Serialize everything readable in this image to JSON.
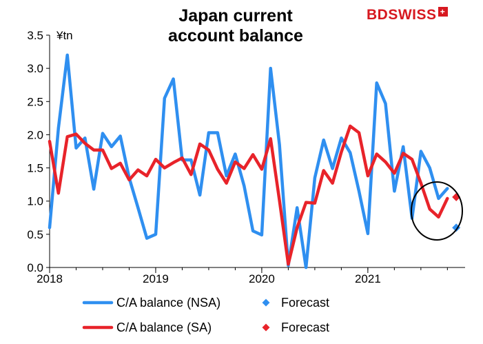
{
  "brand": {
    "bd": "BD",
    "swiss": "SWISS",
    "mark": "+"
  },
  "colors": {
    "nsa": "#2f8ff0",
    "sa": "#e8232a",
    "axis": "#000000",
    "annotation_circle": "#000000"
  },
  "chart_data": {
    "type": "line",
    "title": "Japan current\naccount balance",
    "ylabel": "¥tn",
    "ylim": [
      0,
      3.5
    ],
    "xlim": [
      "2018-01",
      "2021-12"
    ],
    "x_tick_labels": [
      "2018",
      "2019",
      "2020",
      "2021"
    ],
    "y_tick_labels": [
      "0.0",
      "0.5",
      "1.0",
      "1.5",
      "2.0",
      "2.5",
      "3.0",
      "3.5"
    ],
    "x": [
      "2018-01",
      "2018-02",
      "2018-03",
      "2018-04",
      "2018-05",
      "2018-06",
      "2018-07",
      "2018-08",
      "2018-09",
      "2018-10",
      "2018-11",
      "2018-12",
      "2019-01",
      "2019-02",
      "2019-03",
      "2019-04",
      "2019-05",
      "2019-06",
      "2019-07",
      "2019-08",
      "2019-09",
      "2019-10",
      "2019-11",
      "2019-12",
      "2020-01",
      "2020-02",
      "2020-03",
      "2020-04",
      "2020-05",
      "2020-06",
      "2020-07",
      "2020-08",
      "2020-09",
      "2020-10",
      "2020-11",
      "2020-12",
      "2021-01",
      "2021-02",
      "2021-03",
      "2021-04",
      "2021-05",
      "2021-06",
      "2021-07",
      "2021-08",
      "2021-09",
      "2021-10"
    ],
    "series": [
      {
        "name": "C/A balance (NSA)",
        "values": [
          0.6,
          2.1,
          3.2,
          1.8,
          1.95,
          1.18,
          2.02,
          1.82,
          1.98,
          1.35,
          0.9,
          0.44,
          0.5,
          2.55,
          2.84,
          1.62,
          1.62,
          1.09,
          2.03,
          2.03,
          1.38,
          1.71,
          1.23,
          0.55,
          0.49,
          3.0,
          1.85,
          0.03,
          0.9,
          0.0,
          1.35,
          1.92,
          1.49,
          1.95,
          1.73,
          1.15,
          0.51,
          2.78,
          2.47,
          1.15,
          1.82,
          0.74,
          1.75,
          1.5,
          1.04,
          1.19
        ]
      },
      {
        "name": "C/A balance (SA)",
        "values": [
          1.9,
          1.12,
          1.97,
          2.01,
          1.87,
          1.77,
          1.77,
          1.49,
          1.57,
          1.32,
          1.47,
          1.38,
          1.63,
          1.5,
          1.58,
          1.65,
          1.4,
          1.86,
          1.77,
          1.48,
          1.27,
          1.59,
          1.49,
          1.7,
          1.48,
          1.94,
          1.01,
          0.05,
          0.6,
          0.98,
          0.97,
          1.46,
          1.27,
          1.74,
          2.13,
          2.03,
          1.38,
          1.71,
          1.59,
          1.42,
          1.72,
          1.63,
          1.27,
          0.88,
          0.76,
          1.04
        ]
      }
    ],
    "forecast": [
      {
        "name": "Forecast",
        "x": "2021-11",
        "value": 0.6,
        "series": "C/A balance (NSA)"
      },
      {
        "name": "Forecast",
        "x": "2021-11",
        "value": 1.06,
        "series": "C/A balance (SA)"
      }
    ],
    "legend": [
      {
        "label": "C/A balance (NSA)",
        "kind": "line",
        "color_key": "nsa"
      },
      {
        "label": "Forecast",
        "kind": "marker",
        "color_key": "nsa"
      },
      {
        "label": "C/A balance (SA)",
        "kind": "line",
        "color_key": "sa"
      },
      {
        "label": "Forecast",
        "kind": "marker",
        "color_key": "sa"
      }
    ],
    "legend_position": "bottom",
    "grid": false,
    "annotation": "circle around forecast points"
  }
}
